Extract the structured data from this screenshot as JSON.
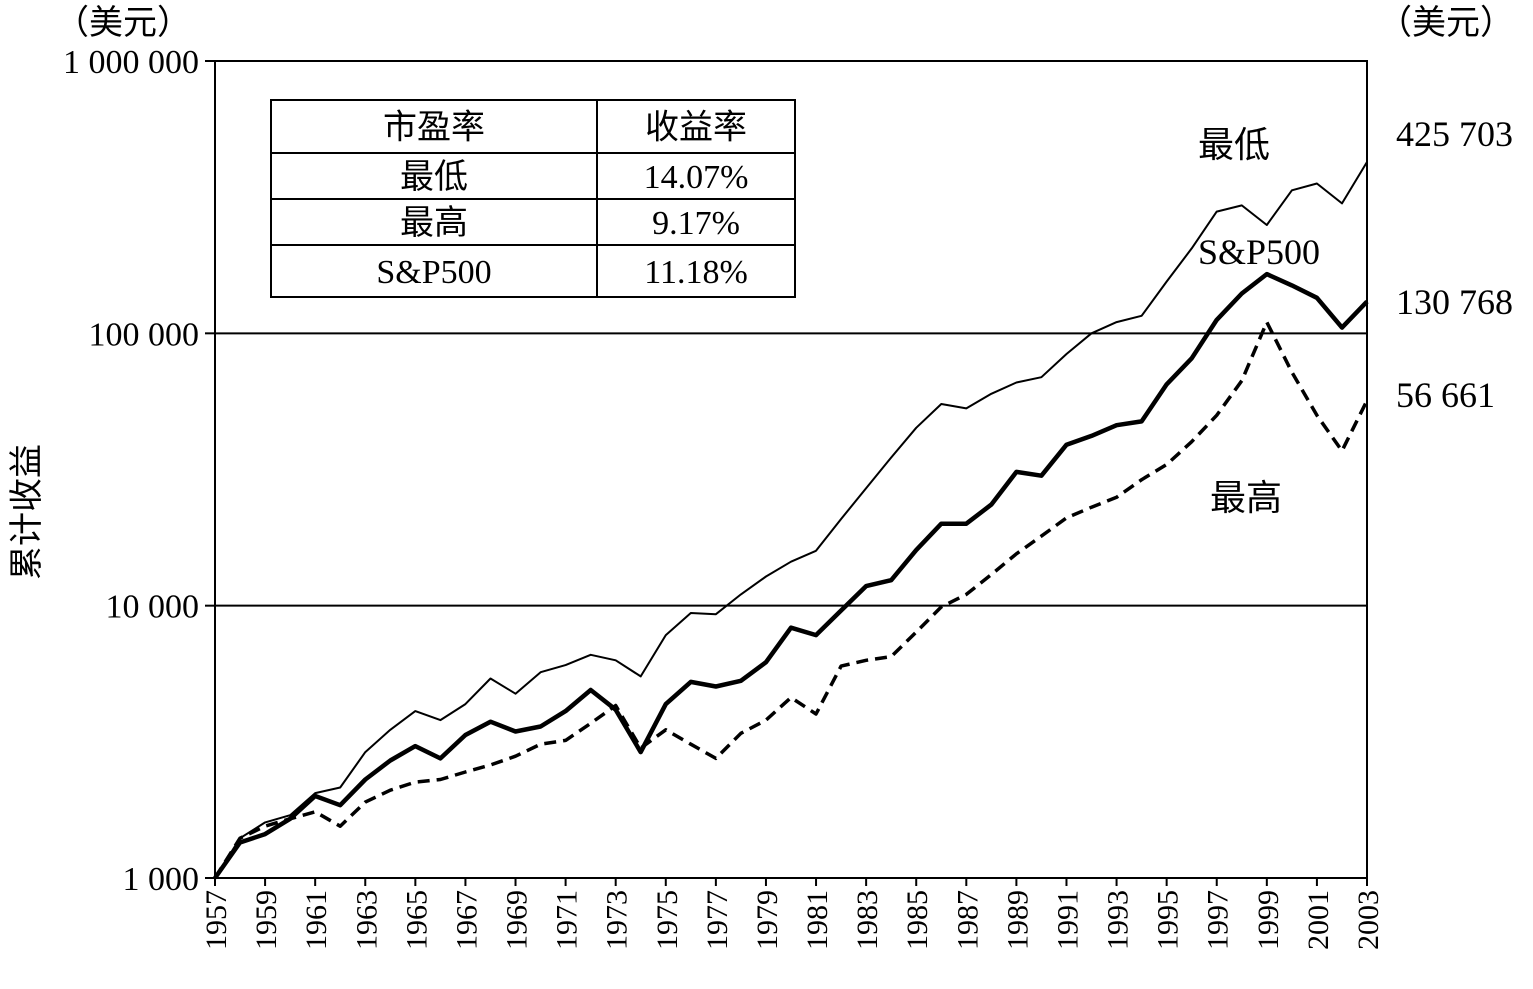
{
  "chart_data": {
    "type": "line",
    "y_scale": "log",
    "ylim": [
      1000,
      1000000
    ],
    "xlim": [
      1957,
      2003
    ],
    "y_ticks": [
      1000,
      10000,
      100000,
      1000000
    ],
    "y_tick_labels": [
      "1 000",
      "10 000",
      "100 000",
      "1 000 000"
    ],
    "x_tick_labels": [
      "1957",
      "1959",
      "1961",
      "1963",
      "1965",
      "1967",
      "1969",
      "1971",
      "1973",
      "1975",
      "1977",
      "1979",
      "1981",
      "1983",
      "1985",
      "1987",
      "1989",
      "1991",
      "1993",
      "1995",
      "1997",
      "1999",
      "2001",
      "2003"
    ],
    "ylabel": "累计收益",
    "unit_left": "（美元）",
    "unit_right": "（美元）",
    "grid": "horizontal at 10000 and 100000",
    "table": {
      "headers": [
        "市盈率",
        "收益率"
      ],
      "rows": [
        [
          "最低",
          "14.07%"
        ],
        [
          "最高",
          "9.17%"
        ],
        [
          "S&P500",
          "11.18%"
        ]
      ]
    },
    "series": [
      {
        "name": "最低",
        "style": "thin-solid",
        "end_value_label": "425 703",
        "x": [
          1957,
          1958,
          1959,
          1960,
          1961,
          1962,
          1963,
          1964,
          1965,
          1966,
          1967,
          1968,
          1969,
          1970,
          1971,
          1972,
          1973,
          1974,
          1975,
          1976,
          1977,
          1978,
          1979,
          1980,
          1981,
          1982,
          1983,
          1984,
          1985,
          1986,
          1987,
          1988,
          1989,
          1990,
          1991,
          1992,
          1993,
          1994,
          1995,
          1996,
          1997,
          1998,
          1999,
          2000,
          2001,
          2002,
          2003
        ],
        "values": [
          1000,
          1400,
          1600,
          1700,
          2050,
          2150,
          2900,
          3500,
          4100,
          3800,
          4350,
          5400,
          4750,
          5700,
          6050,
          6600,
          6300,
          5500,
          7800,
          9400,
          9300,
          11000,
          12800,
          14500,
          15900,
          20800,
          27000,
          35000,
          45000,
          55000,
          53000,
          60000,
          66000,
          69000,
          84000,
          100000,
          110000,
          116000,
          155000,
          205000,
          280000,
          295000,
          250000,
          335000,
          355000,
          300000,
          425703
        ]
      },
      {
        "name": "S&P500",
        "style": "thick-solid",
        "end_value_label": "130 768",
        "x": [
          1957,
          1958,
          1959,
          1960,
          1961,
          1962,
          1963,
          1964,
          1965,
          1966,
          1967,
          1968,
          1969,
          1970,
          1971,
          1972,
          1973,
          1974,
          1975,
          1976,
          1977,
          1978,
          1979,
          1980,
          1981,
          1982,
          1983,
          1984,
          1985,
          1986,
          1987,
          1988,
          1989,
          1990,
          1991,
          1992,
          1993,
          1994,
          1995,
          1996,
          1997,
          1998,
          1999,
          2000,
          2001,
          2002,
          2003
        ],
        "values": [
          1000,
          1350,
          1450,
          1650,
          2000,
          1850,
          2300,
          2700,
          3050,
          2750,
          3350,
          3750,
          3450,
          3600,
          4100,
          4900,
          4150,
          2900,
          4350,
          5250,
          5050,
          5300,
          6200,
          8300,
          7800,
          9600,
          11800,
          12400,
          16000,
          20000,
          20000,
          23500,
          31000,
          30000,
          39000,
          42000,
          46000,
          47500,
          65000,
          81000,
          112000,
          140000,
          165000,
          150000,
          135000,
          105000,
          130768
        ]
      },
      {
        "name": "最高",
        "style": "dashed",
        "end_value_label": "56 661",
        "x": [
          1957,
          1958,
          1959,
          1960,
          1961,
          1962,
          1963,
          1964,
          1965,
          1966,
          1967,
          1968,
          1969,
          1970,
          1971,
          1972,
          1973,
          1974,
          1975,
          1976,
          1977,
          1978,
          1979,
          1980,
          1981,
          1982,
          1983,
          1984,
          1985,
          1986,
          1987,
          1988,
          1989,
          1990,
          1991,
          1992,
          1993,
          1994,
          1995,
          1996,
          1997,
          1998,
          1999,
          2000,
          2001,
          2002,
          2003
        ],
        "values": [
          1000,
          1400,
          1550,
          1650,
          1750,
          1550,
          1900,
          2100,
          2250,
          2300,
          2450,
          2600,
          2800,
          3100,
          3200,
          3700,
          4300,
          3000,
          3500,
          3100,
          2750,
          3400,
          3800,
          4600,
          4000,
          6000,
          6300,
          6500,
          8000,
          9900,
          11000,
          13000,
          15500,
          18000,
          21000,
          23000,
          25000,
          29000,
          33000,
          40000,
          50000,
          67000,
          110000,
          72000,
          50000,
          37000,
          56661
        ]
      }
    ],
    "series_labels": [
      "最低",
      "S&P500",
      "最高"
    ]
  }
}
